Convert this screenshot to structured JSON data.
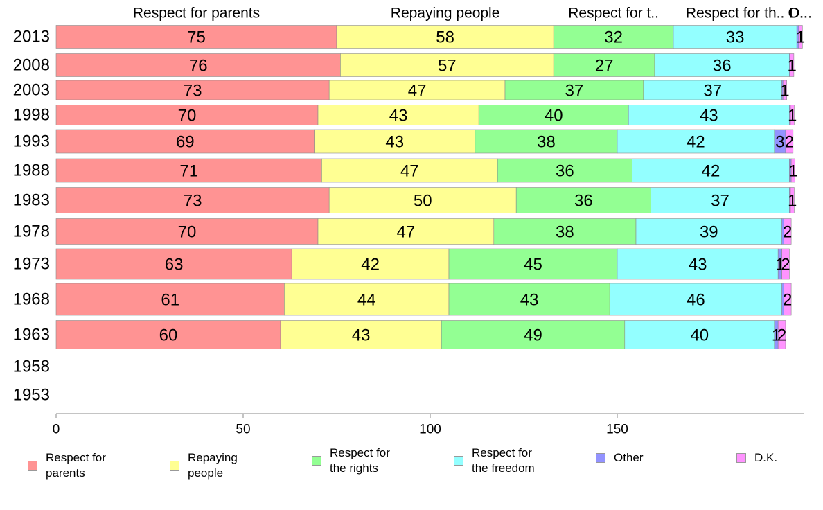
{
  "chart_data": {
    "type": "bar",
    "orientation": "horizontal",
    "stacked": true,
    "categories": [
      "2013",
      "2008",
      "2003",
      "1998",
      "1993",
      "1988",
      "1983",
      "1978",
      "1973",
      "1968",
      "1963",
      "1958",
      "1953"
    ],
    "series": [
      {
        "name": "Respect for parents",
        "color": "#ff9393",
        "values": [
          75,
          76,
          73,
          70,
          69,
          71,
          73,
          70,
          63,
          61,
          60,
          null,
          null
        ]
      },
      {
        "name": "Repaying people",
        "color": "#ffff93",
        "values": [
          58,
          57,
          47,
          43,
          43,
          47,
          50,
          47,
          42,
          44,
          43,
          null,
          null
        ]
      },
      {
        "name": "Respect for the rights",
        "color": "#93ff93",
        "values": [
          32,
          27,
          37,
          40,
          38,
          36,
          36,
          38,
          45,
          43,
          49,
          null,
          null
        ]
      },
      {
        "name": "Respect for the freedom",
        "color": "#93ffff",
        "values": [
          33,
          36,
          37,
          43,
          42,
          42,
          37,
          39,
          43,
          46,
          40,
          null,
          null
        ]
      },
      {
        "name": "Other",
        "color": "#9393ff",
        "values": [
          0.5,
          0.2,
          0.3,
          0.3,
          3,
          0.5,
          0.3,
          0.5,
          1,
          0.5,
          1,
          null,
          null
        ]
      },
      {
        "name": "D.K.",
        "color": "#ff93ff",
        "values": [
          1,
          1,
          1,
          1,
          2,
          1,
          1,
          2,
          2,
          2,
          2,
          null,
          null
        ]
      }
    ],
    "data_labels": [
      [
        "75",
        "58",
        "32",
        "33",
        "",
        "1"
      ],
      [
        "76",
        "57",
        "27",
        "36",
        "",
        "1"
      ],
      [
        "73",
        "47",
        "37",
        "37",
        "",
        "1"
      ],
      [
        "70",
        "43",
        "40",
        "43",
        "",
        "1"
      ],
      [
        "69",
        "43",
        "38",
        "42",
        "3",
        "2"
      ],
      [
        "71",
        "47",
        "36",
        "42",
        "",
        "1"
      ],
      [
        "73",
        "50",
        "36",
        "37",
        "",
        "1"
      ],
      [
        "70",
        "47",
        "38",
        "39",
        "",
        "2"
      ],
      [
        "63",
        "42",
        "45",
        "43",
        "1",
        "2"
      ],
      [
        "61",
        "44",
        "43",
        "46",
        "",
        "2"
      ],
      [
        "60",
        "43",
        "49",
        "40",
        "1",
        "2"
      ],
      [
        "",
        "",
        "",
        "",
        "",
        ""
      ],
      [
        "",
        "",
        "",
        "",
        "",
        ""
      ]
    ],
    "top_labels": [
      "Respect for parents",
      "Repaying people",
      "Respect for t..",
      "Respect for th..",
      "O..",
      "D..."
    ],
    "x_ticks": [
      0,
      50,
      100,
      150
    ],
    "xlim": [
      0,
      200
    ],
    "legend_position": "bottom",
    "grid": false,
    "title": "",
    "xlabel": "",
    "ylabel": ""
  },
  "legend": {
    "items": [
      {
        "label": "Respect for parents",
        "color": "#ff9393"
      },
      {
        "label": "Repaying people",
        "color": "#ffff93"
      },
      {
        "label": "Respect for\nthe rights",
        "color": "#93ff93"
      },
      {
        "label": "Respect for\nthe freedom",
        "color": "#93ffff"
      },
      {
        "label": "Other",
        "color": "#9393ff"
      },
      {
        "label": "D.K.",
        "color": "#ff93ff"
      }
    ]
  }
}
